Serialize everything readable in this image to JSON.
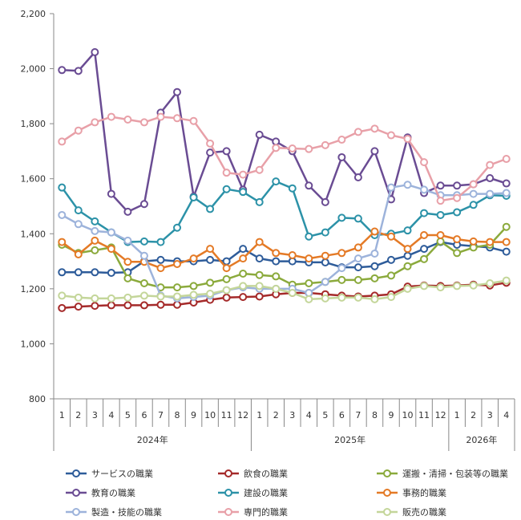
{
  "chart_data": {
    "type": "line",
    "title": "",
    "xlabel": "",
    "ylabel": "",
    "ylim": [
      800,
      2200
    ],
    "yticks": [
      "800",
      "1,000",
      "1,200",
      "1,400",
      "1,600",
      "1,800",
      "2,000",
      "2,200"
    ],
    "grid": false,
    "legend_position": "bottom",
    "months": [
      "1",
      "2",
      "3",
      "4",
      "5",
      "6",
      "7",
      "8",
      "9",
      "10",
      "11",
      "12",
      "1",
      "2",
      "3",
      "4",
      "5",
      "6",
      "7",
      "8",
      "9",
      "10",
      "11",
      "12",
      "1",
      "2",
      "3",
      "4"
    ],
    "years": [
      {
        "label": "2024年",
        "count": 12
      },
      {
        "label": "2025年",
        "count": 12
      },
      {
        "label": "2026年",
        "count": 4
      }
    ],
    "series": [
      {
        "name": "サービスの職業",
        "color": "#2E5C9A",
        "values": [
          1260,
          1260,
          1260,
          1258,
          1260,
          1300,
          1305,
          1300,
          1300,
          1305,
          1300,
          1345,
          1310,
          1300,
          1300,
          1296,
          1296,
          1278,
          1278,
          1282,
          1305,
          1320,
          1345,
          1370,
          1360,
          1355,
          1350,
          1335
        ]
      },
      {
        "name": "飲食の職業",
        "color": "#A52A2A",
        "values": [
          1130,
          1135,
          1138,
          1140,
          1140,
          1140,
          1142,
          1142,
          1150,
          1160,
          1168,
          1170,
          1172,
          1180,
          1185,
          1185,
          1180,
          1175,
          1172,
          1175,
          1180,
          1208,
          1212,
          1210,
          1212,
          1215,
          1212,
          1222
        ]
      },
      {
        "name": "運搬・清掃・包装等の職業",
        "color": "#8BAA3C",
        "values": [
          1360,
          1330,
          1340,
          1350,
          1238,
          1220,
          1205,
          1205,
          1210,
          1222,
          1235,
          1255,
          1250,
          1245,
          1215,
          1220,
          1225,
          1232,
          1232,
          1238,
          1248,
          1282,
          1308,
          1372,
          1330,
          1350,
          1360,
          1425
        ]
      },
      {
        "name": "教育の職業",
        "color": "#6A4C93",
        "values": [
          1995,
          1992,
          2060,
          1545,
          1480,
          1508,
          1840,
          1915,
          1535,
          1695,
          1700,
          1560,
          1760,
          1735,
          1700,
          1575,
          1515,
          1678,
          1605,
          1700,
          1525,
          1750,
          1548,
          1575,
          1575,
          1580,
          1602,
          1583
        ]
      },
      {
        "name": "建設の職業",
        "color": "#2C92A8",
        "values": [
          1568,
          1485,
          1445,
          1405,
          1370,
          1372,
          1370,
          1422,
          1532,
          1490,
          1562,
          1552,
          1515,
          1590,
          1565,
          1390,
          1405,
          1458,
          1455,
          1395,
          1400,
          1412,
          1475,
          1468,
          1478,
          1505,
          1540,
          1538
        ]
      },
      {
        "name": "事務的職業",
        "color": "#E47A26",
        "values": [
          1370,
          1325,
          1375,
          1345,
          1298,
          1298,
          1275,
          1290,
          1310,
          1345,
          1275,
          1310,
          1370,
          1330,
          1322,
          1310,
          1320,
          1330,
          1350,
          1408,
          1390,
          1345,
          1395,
          1395,
          1380,
          1372,
          1370,
          1370
        ]
      },
      {
        "name": "製造・技能の職業",
        "color": "#9DB3DB",
        "values": [
          1468,
          1435,
          1410,
          1405,
          1375,
          1320,
          1175,
          1165,
          1170,
          1175,
          1195,
          1205,
          1200,
          1200,
          1200,
          1185,
          1225,
          1275,
          1310,
          1328,
          1568,
          1578,
          1560,
          1540,
          1540,
          1545,
          1545,
          1548
        ]
      },
      {
        "name": "専門的職業",
        "color": "#E8A0A8",
        "values": [
          1735,
          1775,
          1805,
          1825,
          1815,
          1805,
          1825,
          1820,
          1810,
          1728,
          1622,
          1615,
          1632,
          1712,
          1710,
          1708,
          1722,
          1742,
          1770,
          1782,
          1758,
          1745,
          1660,
          1520,
          1530,
          1580,
          1650,
          1672
        ]
      },
      {
        "name": "販売の職業",
        "color": "#C4D69A",
        "values": [
          1175,
          1168,
          1165,
          1165,
          1168,
          1175,
          1172,
          1172,
          1178,
          1182,
          1195,
          1210,
          1210,
          1200,
          1185,
          1162,
          1165,
          1168,
          1168,
          1162,
          1170,
          1200,
          1210,
          1205,
          1210,
          1212,
          1220,
          1230
        ]
      }
    ]
  }
}
